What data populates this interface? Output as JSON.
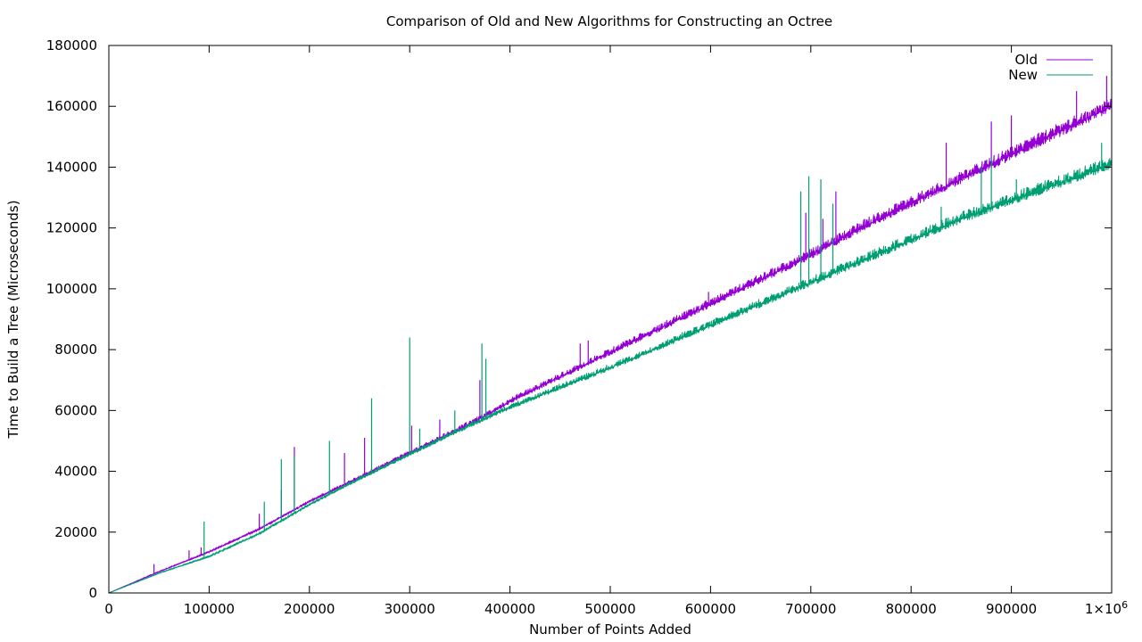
{
  "chart_data": {
    "type": "line",
    "title": "Comparison of Old and New Algorithms for Constructing an Octree",
    "xlabel": "Number of Points Added",
    "ylabel": "Time to Build a Tree (Microseconds)",
    "xlim": [
      0,
      1000000
    ],
    "ylim": [
      0,
      180000
    ],
    "x_ticks": [
      0,
      100000,
      200000,
      300000,
      400000,
      500000,
      600000,
      700000,
      800000,
      900000,
      1000000
    ],
    "x_tick_labels": [
      "0",
      "100000",
      "200000",
      "300000",
      "400000",
      "500000",
      "600000",
      "700000",
      "800000",
      "900000",
      "1×10"
    ],
    "x_last_tick_exponent": "6",
    "y_ticks": [
      0,
      20000,
      40000,
      60000,
      80000,
      100000,
      120000,
      140000,
      160000,
      180000
    ],
    "y_tick_labels": [
      "0",
      "20000",
      "40000",
      "60000",
      "80000",
      "100000",
      "120000",
      "140000",
      "160000",
      "180000"
    ],
    "grid": false,
    "legend_position": "top-right",
    "series": [
      {
        "name": "Old",
        "color": "#9400d3",
        "x": [
          0,
          50000,
          100000,
          150000,
          200000,
          250000,
          300000,
          350000,
          380000,
          400000,
          450000,
          500000,
          550000,
          600000,
          650000,
          700000,
          750000,
          800000,
          850000,
          900000,
          950000,
          1000000
        ],
        "y": [
          0,
          7000,
          13500,
          21000,
          30000,
          38000,
          46000,
          54000,
          59000,
          63000,
          71000,
          79000,
          87000,
          95000,
          103000,
          111000,
          120000,
          128000,
          136000,
          144000,
          152000,
          160000
        ],
        "spikes": [
          [
            45000,
            9500
          ],
          [
            80000,
            14000
          ],
          [
            92000,
            15000
          ],
          [
            150000,
            26000
          ],
          [
            172000,
            34000
          ],
          [
            185000,
            48000
          ],
          [
            235000,
            46000
          ],
          [
            255000,
            51000
          ],
          [
            302000,
            55000
          ],
          [
            330000,
            57000
          ],
          [
            370000,
            70000
          ],
          [
            470000,
            82000
          ],
          [
            478000,
            83000
          ],
          [
            598000,
            99000
          ],
          [
            695000,
            125000
          ],
          [
            712000,
            123000
          ],
          [
            725000,
            132000
          ],
          [
            835000,
            148000
          ],
          [
            880000,
            155000
          ],
          [
            900000,
            157000
          ],
          [
            965000,
            165000
          ],
          [
            995000,
            170000
          ]
        ]
      },
      {
        "name": "New",
        "color": "#009e73",
        "x": [
          0,
          50000,
          100000,
          150000,
          200000,
          250000,
          300000,
          350000,
          380000,
          400000,
          450000,
          500000,
          550000,
          600000,
          650000,
          700000,
          750000,
          800000,
          850000,
          900000,
          950000,
          1000000
        ],
        "y": [
          0,
          6500,
          12000,
          19500,
          29000,
          37500,
          45500,
          53500,
          58000,
          61000,
          67500,
          74000,
          81000,
          88000,
          95000,
          102000,
          109000,
          116000,
          123000,
          129000,
          135000,
          141000
        ],
        "spikes": [
          [
            95000,
            23500
          ],
          [
            155000,
            30000
          ],
          [
            172000,
            44000
          ],
          [
            185000,
            45000
          ],
          [
            220000,
            50000
          ],
          [
            262000,
            64000
          ],
          [
            300000,
            84000
          ],
          [
            310000,
            54000
          ],
          [
            345000,
            60000
          ],
          [
            372000,
            82000
          ],
          [
            376000,
            77000
          ],
          [
            575000,
            85000
          ],
          [
            690000,
            132000
          ],
          [
            698000,
            137000
          ],
          [
            710000,
            136000
          ],
          [
            722000,
            128000
          ],
          [
            830000,
            127000
          ],
          [
            870000,
            140000
          ],
          [
            880000,
            143000
          ],
          [
            905000,
            136000
          ],
          [
            990000,
            148000
          ]
        ]
      }
    ]
  }
}
